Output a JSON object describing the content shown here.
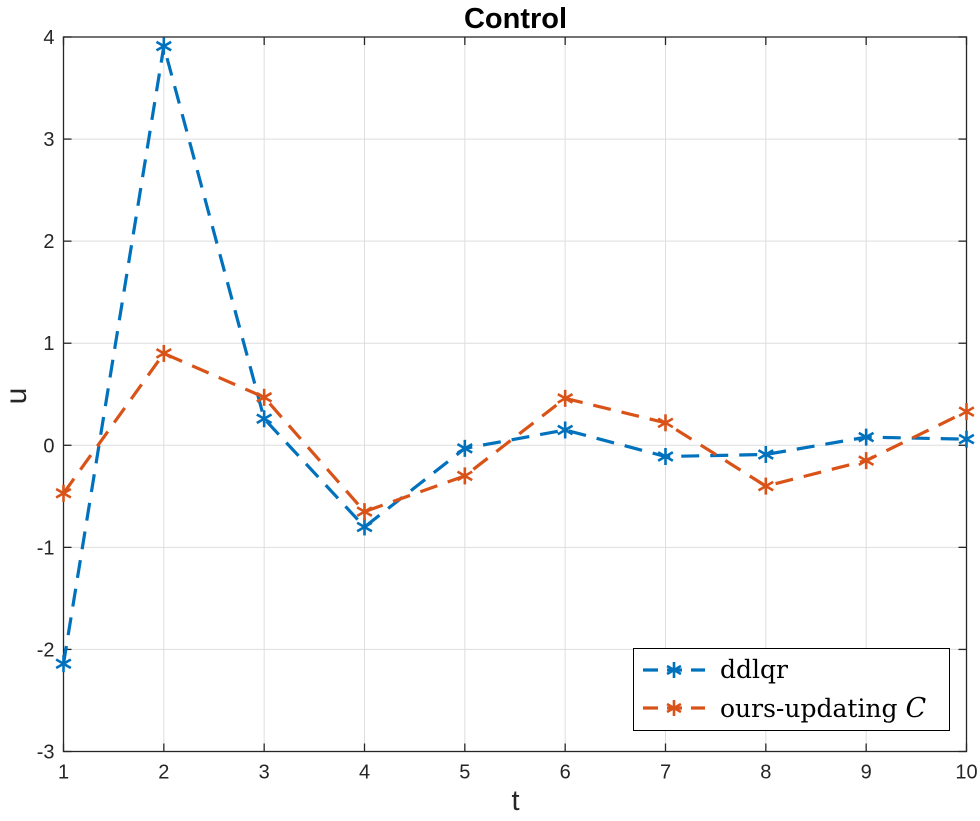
{
  "figure": {
    "background": "#ffffff",
    "axis_color": "#262626",
    "grid_color": "#dedede",
    "tick_label_color": "#262626"
  },
  "chart_data": {
    "type": "line",
    "title": "Control",
    "xlabel": "t",
    "ylabel": "u",
    "x": [
      1,
      2,
      3,
      4,
      5,
      6,
      7,
      8,
      9,
      10
    ],
    "xlim": [
      1,
      10
    ],
    "ylim": [
      -3,
      4
    ],
    "xticks": [
      1,
      2,
      3,
      4,
      5,
      6,
      7,
      8,
      9,
      10
    ],
    "yticks": [
      -3,
      -2,
      -1,
      0,
      1,
      2,
      3,
      4
    ],
    "grid": true,
    "line_style": "dashed",
    "marker": "asterisk",
    "legend_position": "bottom-right",
    "series": [
      {
        "name": "ddlqr",
        "color": "#0072BD",
        "values": [
          -2.14,
          3.91,
          0.26,
          -0.8,
          -0.03,
          0.15,
          -0.11,
          -0.09,
          0.08,
          0.06
        ]
      },
      {
        "name": "ours-updating 𝒞",
        "color": "#D95319",
        "values": [
          -0.47,
          0.9,
          0.47,
          -0.65,
          -0.3,
          0.46,
          0.22,
          -0.4,
          -0.15,
          0.33
        ]
      }
    ]
  },
  "legend": {
    "entries": [
      {
        "label": "ddlqr",
        "color": "#0072BD"
      },
      {
        "label": "ours-updating 𝒞",
        "label_prefix": "ours-updating",
        "symbol_render": "C",
        "color": "#D95319"
      }
    ]
  }
}
